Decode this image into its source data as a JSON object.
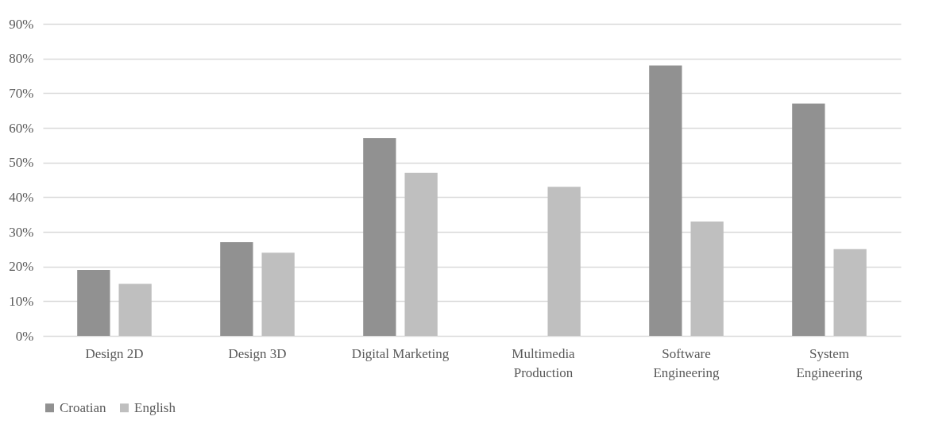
{
  "chart_data": {
    "type": "bar",
    "categories": [
      "Design 2D",
      "Design 3D",
      "Digital Marketing",
      "Multimedia Production",
      "Software Engineering",
      "System Engineering"
    ],
    "series": [
      {
        "name": "Croatian",
        "color": "#919191",
        "values": [
          19,
          27,
          57,
          0,
          78,
          67
        ]
      },
      {
        "name": "English",
        "color": "#bfbfbf",
        "values": [
          15,
          24,
          47,
          43,
          33,
          25
        ]
      }
    ],
    "ylim": [
      0,
      90
    ],
    "yticks": [
      {
        "value": 0,
        "label": "0%"
      },
      {
        "value": 10,
        "label": "10%"
      },
      {
        "value": 20,
        "label": "20%"
      },
      {
        "value": 30,
        "label": "30%"
      },
      {
        "value": 40,
        "label": "40%"
      },
      {
        "value": 50,
        "label": "50%"
      },
      {
        "value": 60,
        "label": "60%"
      },
      {
        "value": 70,
        "label": "70%"
      },
      {
        "value": 80,
        "label": "80%"
      },
      {
        "value": 90,
        "label": "90%"
      }
    ],
    "grid": "y",
    "legend": "bottom"
  }
}
